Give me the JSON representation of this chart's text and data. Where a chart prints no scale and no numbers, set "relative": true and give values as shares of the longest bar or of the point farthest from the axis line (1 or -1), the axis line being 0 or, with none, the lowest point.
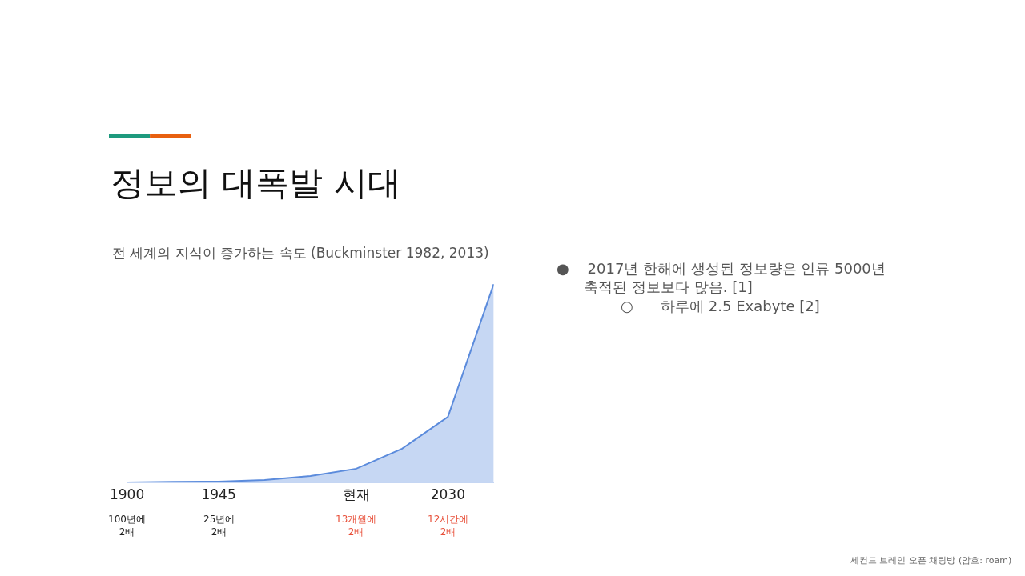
{
  "chart_data": {
    "type": "area",
    "relative": true,
    "title": "정보의 대폭발 시대",
    "subtitle": "전 세계의 지식이 증가하는 속도 (Buckminster 1982, 2013)",
    "categories": [
      "1900",
      null,
      "1945",
      null,
      null,
      "현재",
      null,
      "2030",
      null
    ],
    "series": [
      {
        "color": "#5b8bdc",
        "values": [
          0,
          0.003,
          0.004,
          0.012,
          0.032,
          0.069,
          0.17,
          0.33,
          1
        ]
      }
    ],
    "annotations": [
      "100년에\n2배",
      "25년에\n2배",
      "13개월에\n2배",
      "12시간에\n2배",
      "●    2017년 한해에 생성된 정보량은 인류 5000년\n      축적된 정보보다 많음. [1]\n              ○      하루에 2.5 Exabyte [2]",
      "세컨드 브레인 오픈 채팅방 (암호: roam)"
    ],
    "line_style": "solid"
  }
}
